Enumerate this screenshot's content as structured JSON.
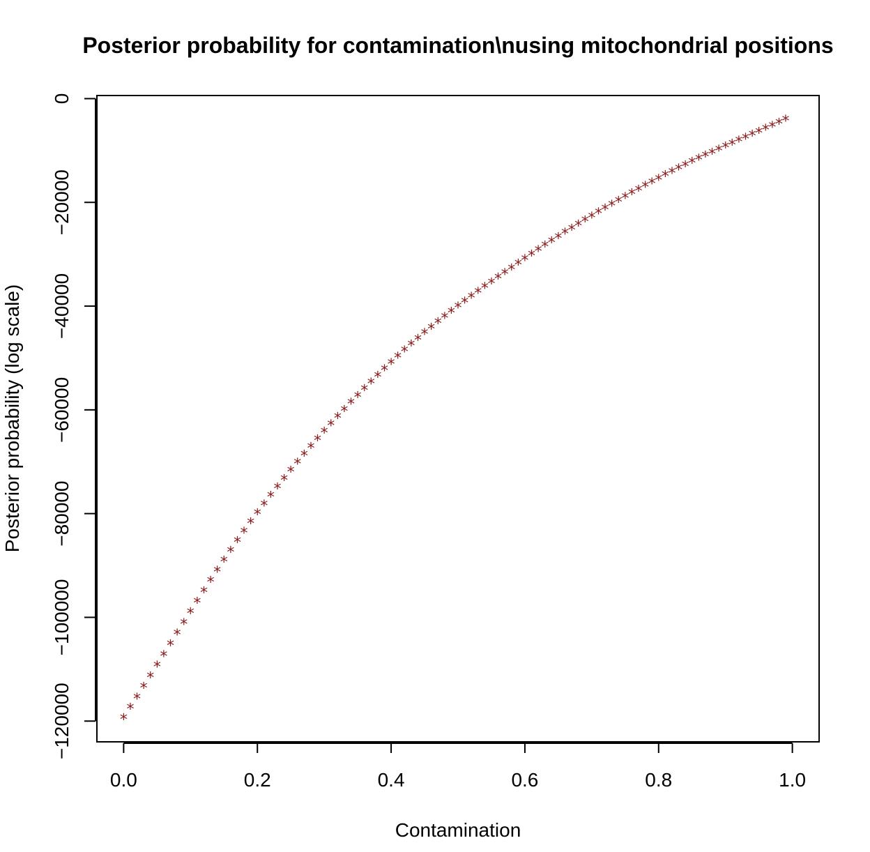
{
  "chart_data": {
    "type": "scatter",
    "title": "Posterior probability for contamination\\nusing mitochondrial positions",
    "xlabel": "Contamination",
    "ylabel": "Posterior probability (log scale)",
    "xlim": [
      -0.04,
      1.04
    ],
    "ylim": [
      -124000,
      600
    ],
    "x_ticks": [
      0.0,
      0.2,
      0.4,
      0.6,
      0.8,
      1.0
    ],
    "x_tick_labels": [
      "0.0",
      "0.2",
      "0.4",
      "0.6",
      "0.8",
      "1.0"
    ],
    "y_ticks": [
      0,
      -20000,
      -40000,
      -60000,
      -80000,
      -100000,
      -120000
    ],
    "y_tick_labels": [
      "0",
      "−20000",
      "−40000",
      "−60000",
      "−80000",
      "−100000",
      "−120000"
    ],
    "marker": "*",
    "marker_color": "#8b1a1a",
    "grid": false,
    "legend": "none",
    "curve_model": {
      "points": [
        {
          "x": 0.0,
          "y": -119500
        },
        {
          "x": 0.2,
          "y": -80000
        },
        {
          "x": 0.4,
          "y": -51000
        },
        {
          "x": 0.6,
          "y": -31000
        },
        {
          "x": 0.8,
          "y": -15500
        },
        {
          "x": 0.99,
          "y": -4100
        }
      ],
      "x_start": 0.0,
      "x_end": 0.99,
      "x_step": 0.01
    }
  }
}
